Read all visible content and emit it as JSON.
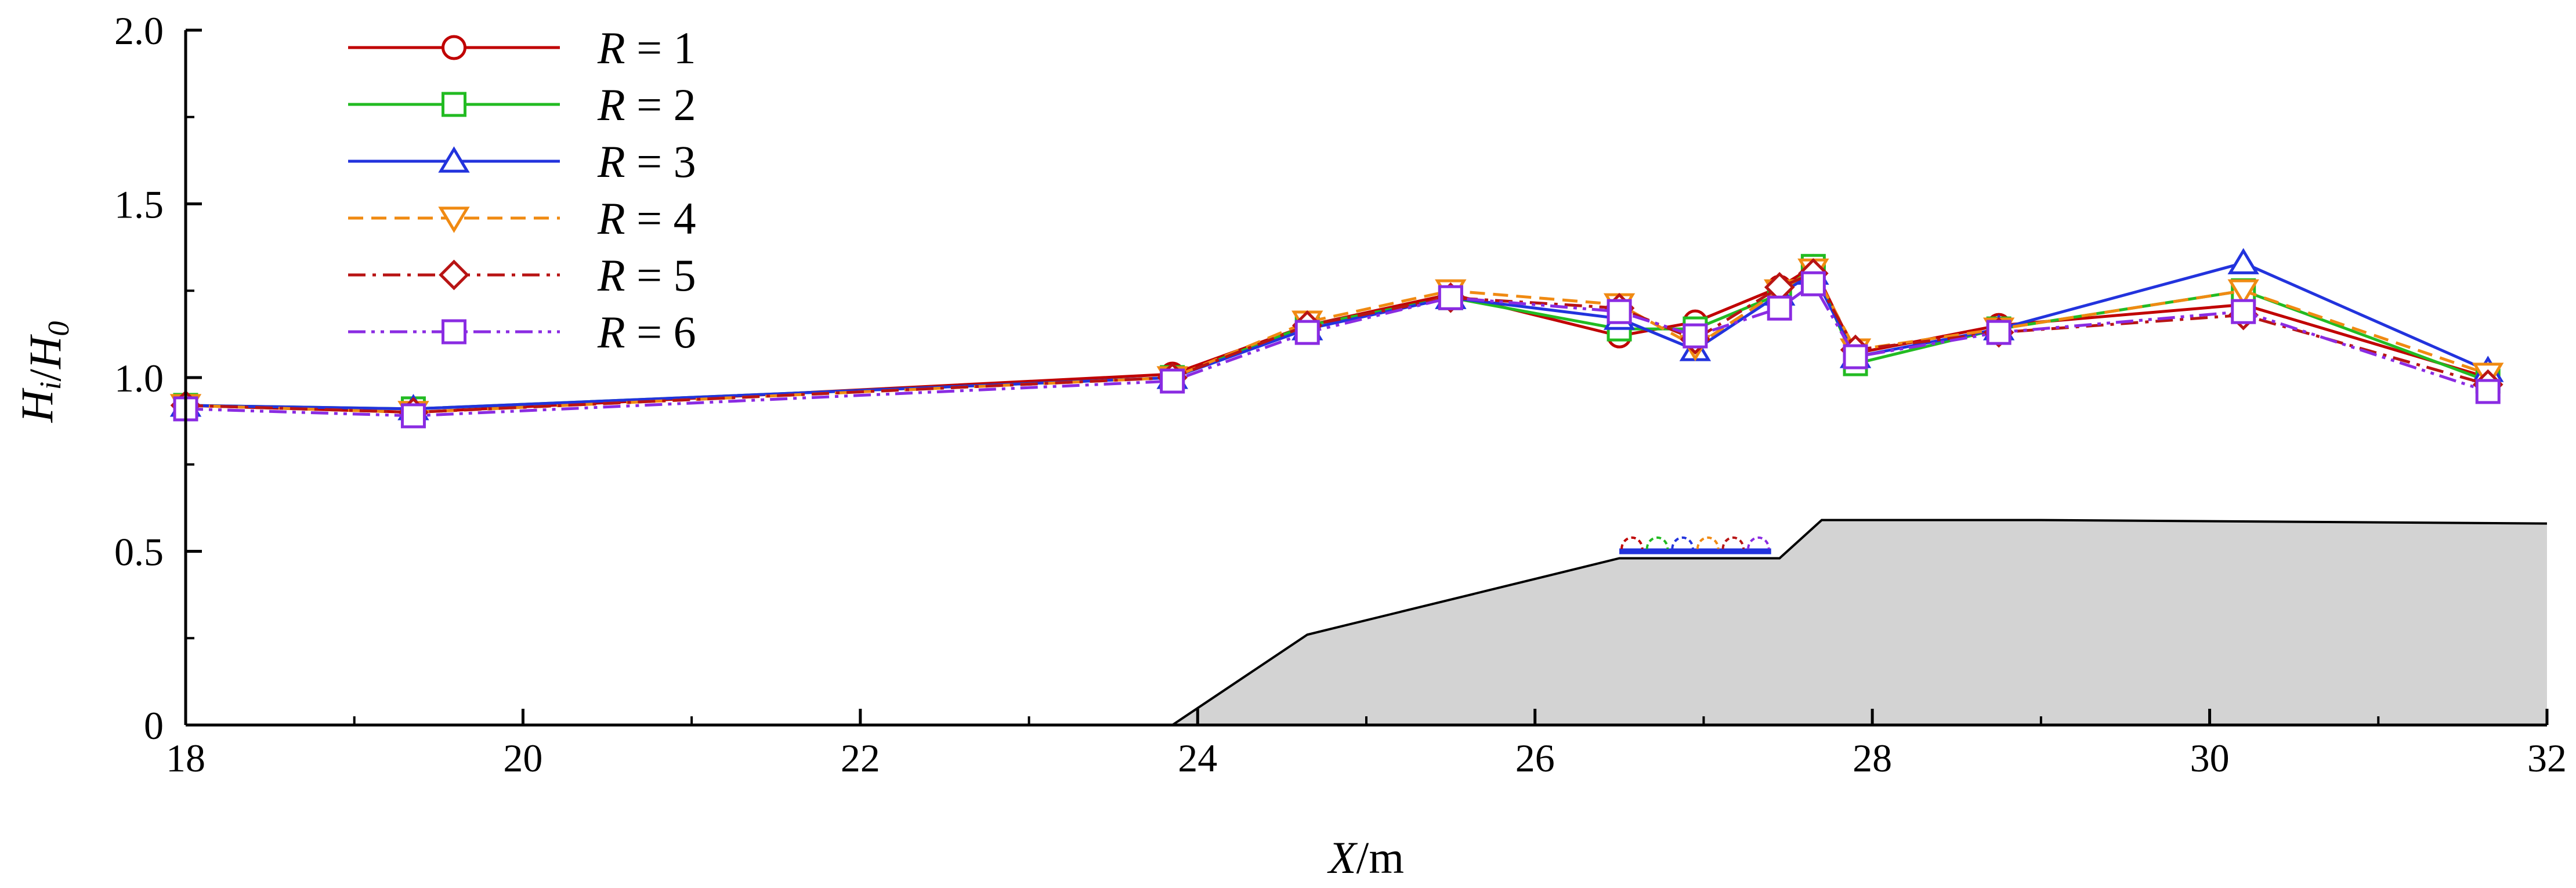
{
  "chart_data": {
    "type": "line",
    "xlabel": "X/m",
    "ylabel": "Hi/H0",
    "xlim": [
      18,
      32
    ],
    "ylim": [
      0,
      2.0
    ],
    "x_ticks": [
      18,
      20,
      22,
      24,
      26,
      28,
      30,
      32
    ],
    "y_ticks": [
      0,
      0.5,
      1.0,
      1.5,
      2.0
    ],
    "y_tick_labels": [
      "0",
      "0.5",
      "1.0",
      "1.5",
      "2.0"
    ],
    "legend_position": "top-left",
    "x": [
      18.0,
      19.35,
      23.85,
      24.65,
      25.5,
      26.5,
      26.95,
      27.45,
      27.65,
      27.9,
      28.75,
      30.2,
      31.65
    ],
    "series": [
      {
        "name": "R = 1",
        "color": "#c00000",
        "marker": "circle",
        "dash": "solid",
        "values": [
          0.92,
          0.9,
          1.01,
          1.15,
          1.24,
          1.12,
          1.16,
          1.26,
          1.32,
          1.07,
          1.15,
          1.21,
          1.0
        ]
      },
      {
        "name": "R = 2",
        "color": "#22bb22",
        "marker": "square",
        "dash": "solid",
        "values": [
          0.92,
          0.91,
          1.0,
          1.15,
          1.23,
          1.14,
          1.14,
          1.24,
          1.32,
          1.04,
          1.14,
          1.25,
          0.99
        ]
      },
      {
        "name": "R = 3",
        "color": "#2233dd",
        "marker": "triangle-up",
        "dash": "solid",
        "values": [
          0.92,
          0.91,
          1.0,
          1.14,
          1.23,
          1.17,
          1.08,
          1.24,
          1.3,
          1.06,
          1.14,
          1.33,
          1.02
        ]
      },
      {
        "name": "R = 4",
        "color": "#f08a12",
        "marker": "triangle-down",
        "dash": "dashed",
        "values": [
          0.92,
          0.9,
          1.0,
          1.16,
          1.25,
          1.21,
          1.09,
          1.25,
          1.31,
          1.08,
          1.14,
          1.25,
          1.01
        ]
      },
      {
        "name": "R = 5",
        "color": "#b81414",
        "marker": "diamond",
        "dash": "dashdot",
        "values": [
          0.92,
          0.9,
          1.0,
          1.15,
          1.23,
          1.2,
          1.11,
          1.26,
          1.3,
          1.08,
          1.13,
          1.18,
          0.98
        ]
      },
      {
        "name": "R = 6",
        "color": "#8a2be2",
        "marker": "square",
        "dash": "dashdotdot",
        "values": [
          0.91,
          0.89,
          0.99,
          1.13,
          1.23,
          1.19,
          1.12,
          1.2,
          1.27,
          1.06,
          1.13,
          1.19,
          0.96
        ]
      }
    ],
    "bathymetry": {
      "fill": "#d3d3d3",
      "x": [
        23.85,
        24.65,
        26.5,
        27.45,
        27.7,
        29.0,
        32.0
      ],
      "y": [
        0.0,
        0.26,
        0.48,
        0.48,
        0.59,
        0.59,
        0.58
      ]
    },
    "reef_structure": {
      "x_start": 26.5,
      "x_end": 27.4,
      "y": 0.5,
      "bar_color": "#2233dd",
      "arc_colors": [
        "#c00000",
        "#22bb22",
        "#2233dd",
        "#f08a12",
        "#b81414",
        "#8a2be2"
      ]
    }
  }
}
